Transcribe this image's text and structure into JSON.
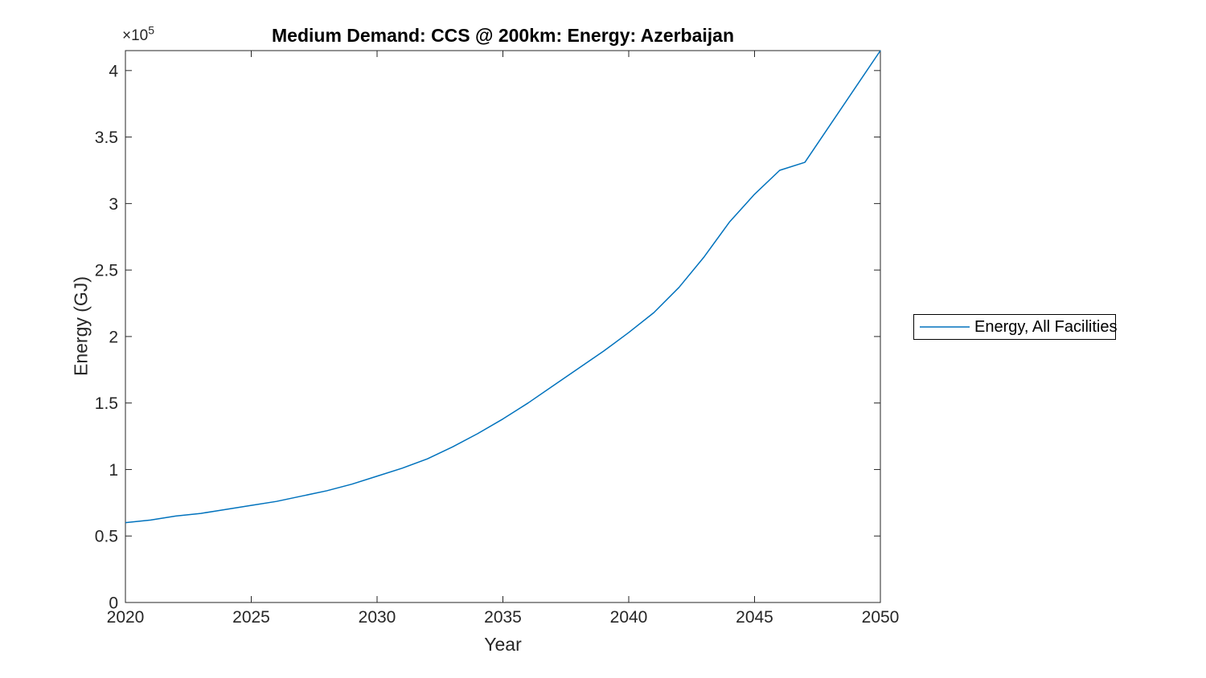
{
  "figure": {
    "background": "#ffffff",
    "axis_color": "#262626",
    "title_color": "#000000"
  },
  "chart_data": {
    "type": "line",
    "title": "Medium Demand: CCS @ 200km: Energy: Azerbaijan",
    "xlabel": "Year",
    "ylabel": "Energy (GJ)",
    "y_axis_multiplier": {
      "base": "×10",
      "exponent": "5"
    },
    "xlim": [
      2020,
      2050
    ],
    "ylim": [
      0,
      415000
    ],
    "x_ticks": [
      2020,
      2025,
      2030,
      2035,
      2040,
      2045,
      2050
    ],
    "x_tick_labels": [
      "2020",
      "2025",
      "2030",
      "2035",
      "2040",
      "2045",
      "2050"
    ],
    "y_ticks": [
      0,
      50000,
      100000,
      150000,
      200000,
      250000,
      300000,
      350000,
      400000
    ],
    "y_tick_labels": [
      "0",
      "0.5",
      "1",
      "1.5",
      "2",
      "2.5",
      "3",
      "3.5",
      "4"
    ],
    "grid": false,
    "box": true,
    "legend_position": "outside-right",
    "series": [
      {
        "name": "Energy, All Facilities",
        "color": "#0072BD",
        "x": [
          2020,
          2021,
          2022,
          2023,
          2024,
          2025,
          2026,
          2027,
          2028,
          2029,
          2030,
          2031,
          2032,
          2033,
          2034,
          2035,
          2036,
          2037,
          2038,
          2039,
          2040,
          2041,
          2042,
          2043,
          2044,
          2045,
          2046,
          2047,
          2048,
          2049,
          2050
        ],
        "values": [
          60000,
          62000,
          65000,
          67000,
          70000,
          73000,
          76000,
          80000,
          84000,
          89000,
          95000,
          101000,
          108000,
          117000,
          127000,
          138000,
          150000,
          163000,
          176000,
          189000,
          203000,
          218000,
          237000,
          260000,
          286000,
          307000,
          325000,
          331000,
          359000,
          387000,
          415000
        ]
      }
    ]
  }
}
